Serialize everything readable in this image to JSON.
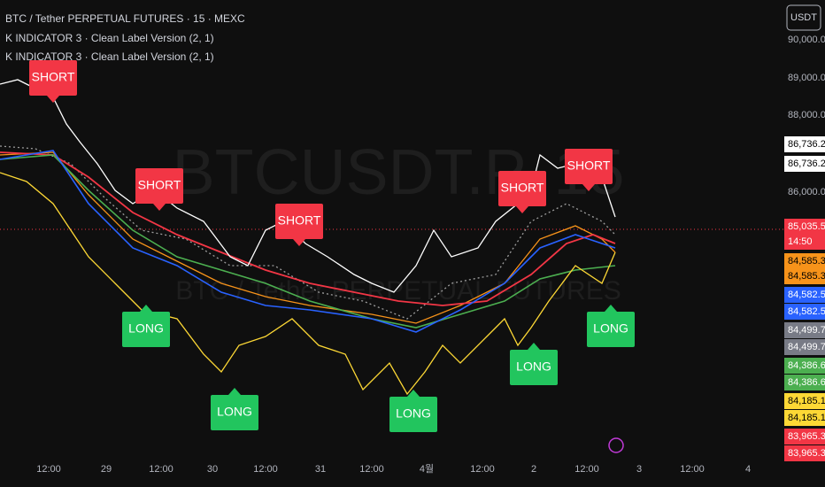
{
  "header": {
    "symbol": "BTC / Tether PERPETUAL FUTURES · 15 · MEXC",
    "indicators": [
      "K INDICATOR 3 · Clean Label Version (2, 1)",
      "K INDICATOR 3 · Clean Label Version (2, 1)"
    ]
  },
  "currency_button": "USDT",
  "watermark": {
    "ticker": "BTCUSDT.P, 15",
    "name": "BTC / Tether PERPETUAL FUTURES"
  },
  "price_axis": [
    "90,000.0",
    "89,000.0",
    "88,000.0",
    "86,000.0"
  ],
  "price_tags": [
    {
      "label": "86,736.2",
      "color": "#ffffff"
    },
    {
      "label": "86,736.2",
      "color": "#ffffff"
    },
    {
      "label": "85,035.5",
      "color": "#f23645"
    },
    {
      "label": "14:50",
      "color": "#f23645"
    },
    {
      "label": "84,585.3",
      "color": "#f7931a"
    },
    {
      "label": "84,585.3",
      "color": "#f7931a"
    },
    {
      "label": "84,582.5",
      "color": "#2962ff"
    },
    {
      "label": "84,582.5",
      "color": "#2962ff"
    },
    {
      "label": "84,499.7",
      "color": "#787b86"
    },
    {
      "label": "84,499.7",
      "color": "#787b86"
    },
    {
      "label": "84,386.6",
      "color": "#4caf50"
    },
    {
      "label": "84,386.6",
      "color": "#4caf50"
    },
    {
      "label": "84,185.1",
      "color": "#fdd835"
    },
    {
      "label": "84,185.1",
      "color": "#fdd835"
    },
    {
      "label": "83,965.3",
      "color": "#f23645"
    },
    {
      "label": "83,965.3",
      "color": "#f23645"
    }
  ],
  "time_axis": [
    "12:00",
    "29",
    "12:00",
    "30",
    "12:00",
    "31",
    "12:00",
    "4월",
    "12:00",
    "2",
    "12:00",
    "3",
    "12:00",
    "4"
  ],
  "signals": [
    "SHORT",
    "SHORT",
    "SHORT",
    "SHORT",
    "SHORT",
    "LONG",
    "LONG",
    "LONG",
    "LONG",
    "LONG"
  ]
}
